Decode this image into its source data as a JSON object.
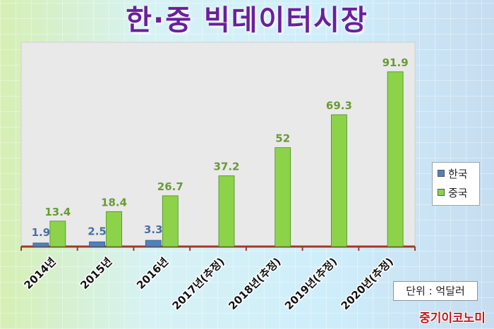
{
  "title": "한·중 빅데이터시장",
  "unit_note": "단위 : 억달러",
  "watermark": "중기이코노미",
  "colors": {
    "korea": "#4f81bd",
    "china": "#8cd34a",
    "title": "#6b1f9c",
    "axis": "#a0392a"
  },
  "chart_data": {
    "type": "bar",
    "title": "한·중 빅데이터시장",
    "xlabel": "",
    "ylabel": "",
    "ylim": [
      0,
      100
    ],
    "grid": false,
    "legend_position": "right",
    "categories": [
      "2014년",
      "2015년",
      "2016년",
      "2017년(추정)",
      "2018년(추정)",
      "2019년(추정)",
      "2020년(추정)"
    ],
    "series": [
      {
        "name": "한국",
        "color": "#4f81bd",
        "values": [
          1.9,
          2.5,
          3.3,
          null,
          null,
          null,
          null
        ],
        "labels": [
          "1.9",
          "2.5",
          "3.3",
          "",
          "",
          "",
          ""
        ]
      },
      {
        "name": "중국",
        "color": "#8cd34a",
        "values": [
          13.4,
          18.4,
          26.7,
          37.2,
          52,
          69.3,
          91.9
        ],
        "labels": [
          "13.4",
          "18.4",
          "26.7",
          "37.2",
          "52",
          "69.3",
          "91.9"
        ]
      }
    ]
  }
}
